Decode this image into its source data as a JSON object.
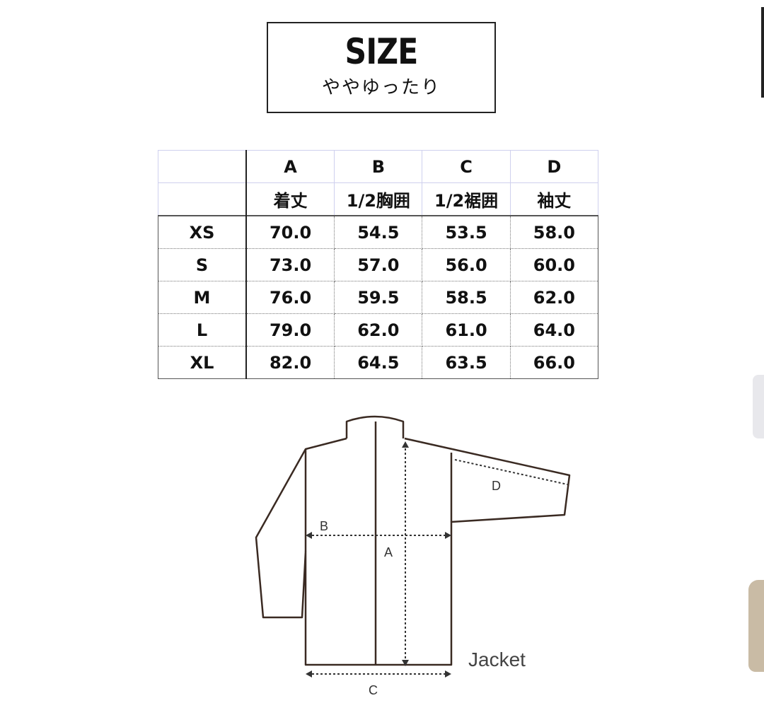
{
  "header": {
    "title": "SIZE",
    "subtitle": "ややゆったり"
  },
  "table": {
    "letters": [
      "A",
      "B",
      "C",
      "D"
    ],
    "labels": [
      "着丈",
      "1/2胸囲",
      "1/2裾囲",
      "袖丈"
    ],
    "rows": [
      {
        "size": "XS",
        "values": [
          "70.0",
          "54.5",
          "53.5",
          "58.0"
        ]
      },
      {
        "size": "S",
        "values": [
          "73.0",
          "57.0",
          "56.0",
          "60.0"
        ]
      },
      {
        "size": "M",
        "values": [
          "76.0",
          "59.5",
          "58.5",
          "62.0"
        ]
      },
      {
        "size": "L",
        "values": [
          "79.0",
          "62.0",
          "61.0",
          "64.0"
        ]
      },
      {
        "size": "XL",
        "values": [
          "82.0",
          "64.5",
          "63.5",
          "66.0"
        ]
      }
    ]
  },
  "diagram": {
    "label_a": "A",
    "label_b": "B",
    "label_c": "C",
    "label_d": "D",
    "caption": "Jacket"
  }
}
